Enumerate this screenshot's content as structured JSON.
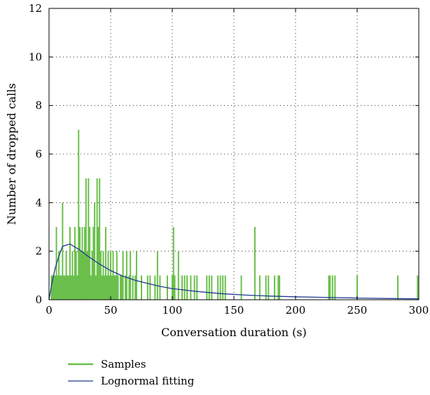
{
  "chart_data": {
    "type": "bar",
    "title": "",
    "xlabel": "Conversation duration (s)",
    "ylabel": "Number of dropped calls",
    "xlim": [
      0,
      300
    ],
    "ylim": [
      0,
      12
    ],
    "xticks": [
      0,
      50,
      100,
      150,
      200,
      250,
      300
    ],
    "yticks": [
      0,
      2,
      4,
      6,
      8,
      10,
      12
    ],
    "grid": true,
    "legend_position": "bottom-left (below plot)",
    "series": [
      {
        "name": "Samples",
        "type": "bar",
        "color": "#6abf4b",
        "x": [
          2,
          3,
          4,
          5,
          6,
          7,
          8,
          9,
          10,
          11,
          12,
          13,
          14,
          15,
          16,
          17,
          18,
          19,
          20,
          21,
          22,
          23,
          24,
          25,
          26,
          27,
          28,
          29,
          30,
          31,
          32,
          33,
          34,
          35,
          36,
          37,
          38,
          39,
          40,
          41,
          42,
          43,
          44,
          45,
          46,
          47,
          48,
          49,
          50,
          51,
          52,
          53,
          54,
          55,
          56,
          58,
          59,
          60,
          62,
          63,
          65,
          66,
          68,
          70,
          71,
          75,
          80,
          82,
          86,
          88,
          90,
          96,
          100,
          101,
          102,
          105,
          108,
          110,
          112,
          115,
          118,
          120,
          128,
          130,
          132,
          137,
          139,
          141,
          143,
          156,
          167,
          171,
          176,
          178,
          183,
          186,
          187,
          227,
          228,
          230,
          232,
          250,
          283,
          299
        ],
        "values": [
          1,
          1,
          1,
          1,
          3,
          1,
          2,
          1,
          1,
          4,
          1,
          1,
          2,
          1,
          1,
          3,
          1,
          2,
          1,
          3,
          2,
          1,
          7,
          3,
          2,
          3,
          2,
          3,
          5,
          2,
          5,
          3,
          1,
          2,
          3,
          4,
          1,
          5,
          3,
          5,
          2,
          1,
          2,
          1,
          3,
          1,
          2,
          1,
          2,
          1,
          2,
          1,
          1,
          2,
          1,
          1,
          1,
          2,
          1,
          2,
          1,
          2,
          1,
          1,
          2,
          1,
          1,
          1,
          1,
          2,
          1,
          1,
          1,
          3,
          1,
          2,
          1,
          1,
          1,
          1,
          1,
          1,
          1,
          1,
          1,
          1,
          1,
          1,
          1,
          1,
          3,
          1,
          1,
          1,
          1,
          1,
          1,
          1,
          1,
          1,
          1,
          1,
          1,
          1
        ]
      },
      {
        "name": "Lognormal fitting",
        "type": "line",
        "color": "#1f3a8f",
        "x": [
          0,
          2,
          5,
          8,
          11,
          14,
          17,
          20,
          25,
          30,
          40,
          50,
          60,
          70,
          80,
          90,
          100,
          120,
          140,
          160,
          180,
          200,
          220,
          250,
          280,
          300
        ],
        "values": [
          0,
          0.6,
          1.3,
          1.8,
          2.2,
          2.25,
          2.3,
          2.2,
          2.05,
          1.85,
          1.5,
          1.2,
          0.97,
          0.8,
          0.67,
          0.55,
          0.46,
          0.34,
          0.25,
          0.19,
          0.15,
          0.12,
          0.1,
          0.07,
          0.05,
          0.04
        ]
      }
    ]
  }
}
